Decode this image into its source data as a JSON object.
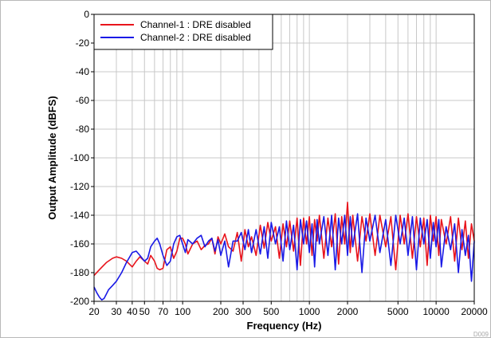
{
  "chart_data": {
    "type": "line",
    "title": "",
    "xlabel": "Frequency (Hz)",
    "ylabel": "Output Amplitude (dBFS)",
    "x_scale": "log",
    "xlim": [
      20,
      20000
    ],
    "ylim": [
      -200,
      0
    ],
    "grid": true,
    "legend_position": "top-left",
    "x_ticks": [
      20,
      30,
      40,
      50,
      70,
      100,
      200,
      300,
      500,
      1000,
      2000,
      5000,
      10000,
      20000
    ],
    "x_tick_labels": [
      "20",
      "30",
      "40",
      "50",
      "70",
      "100",
      "200",
      "300",
      "500",
      "1000",
      "2000",
      "5000",
      "10000",
      "20000"
    ],
    "y_ticks": [
      0,
      -20,
      -40,
      -60,
      -80,
      -100,
      -120,
      -140,
      -160,
      -180,
      -200
    ],
    "y_tick_labels": [
      "0",
      "-20",
      "-40",
      "-60",
      "-80",
      "-100",
      "-120",
      "-140",
      "-160",
      "-180",
      "-200"
    ],
    "series": [
      {
        "name": "Channel-1 : DRE disabled",
        "color": "#e8141c",
        "x": [
          20,
          22,
          25,
          28,
          30,
          33,
          36,
          40,
          43,
          46,
          50,
          53,
          56,
          60,
          63,
          66,
          70,
          75,
          80,
          85,
          90,
          95,
          100,
          105,
          110,
          120,
          130,
          140,
          150,
          160,
          170,
          180,
          190,
          200,
          215,
          230,
          250,
          270,
          290,
          310,
          330,
          350,
          380,
          410,
          440,
          470,
          500,
          540,
          580,
          620,
          660,
          700,
          750,
          800,
          850,
          900,
          950,
          1000,
          1050,
          1100,
          1150,
          1200,
          1300,
          1400,
          1500,
          1600,
          1700,
          1800,
          1900,
          2000,
          2100,
          2200,
          2400,
          2600,
          2800,
          3000,
          3300,
          3600,
          4000,
          4400,
          4800,
          5200,
          5600,
          6000,
          6500,
          7000,
          7500,
          8000,
          8500,
          9000,
          9500,
          10000,
          10500,
          11000,
          12000,
          13000,
          14000,
          15000,
          16000,
          17000,
          18000,
          19000,
          20000
        ],
        "y": [
          -182,
          -178,
          -173,
          -170,
          -169,
          -170,
          -172,
          -176,
          -172,
          -169,
          -172,
          -174,
          -168,
          -172,
          -177,
          -178,
          -177,
          -164,
          -162,
          -170,
          -165,
          -156,
          -156,
          -160,
          -167,
          -160,
          -158,
          -164,
          -161,
          -160,
          -156,
          -167,
          -155,
          -160,
          -153,
          -162,
          -165,
          -152,
          -172,
          -150,
          -162,
          -155,
          -168,
          -147,
          -163,
          -145,
          -158,
          -148,
          -170,
          -146,
          -162,
          -144,
          -165,
          -142,
          -175,
          -142,
          -160,
          -141,
          -168,
          -143,
          -158,
          -140,
          -170,
          -142,
          -162,
          -139,
          -174,
          -141,
          -160,
          -131,
          -166,
          -140,
          -172,
          -141,
          -158,
          -139,
          -168,
          -140,
          -162,
          -141,
          -178,
          -140,
          -160,
          -139,
          -170,
          -141,
          -162,
          -142,
          -175,
          -140,
          -158,
          -141,
          -168,
          -143,
          -160,
          -141,
          -172,
          -142,
          -164,
          -144,
          -170,
          -146,
          -158
        ]
      },
      {
        "name": "Channel-2 : DRE disabled",
        "color": "#1a1ae6",
        "x": [
          20,
          21,
          22,
          23,
          24,
          25,
          26,
          28,
          30,
          33,
          36,
          40,
          43,
          46,
          50,
          53,
          56,
          60,
          63,
          66,
          70,
          75,
          80,
          85,
          90,
          95,
          100,
          105,
          110,
          120,
          130,
          140,
          150,
          160,
          170,
          180,
          190,
          200,
          215,
          230,
          250,
          270,
          290,
          310,
          330,
          350,
          380,
          410,
          440,
          470,
          500,
          540,
          580,
          620,
          660,
          700,
          750,
          800,
          850,
          900,
          950,
          1000,
          1050,
          1100,
          1150,
          1200,
          1300,
          1400,
          1500,
          1600,
          1700,
          1800,
          1900,
          2000,
          2100,
          2200,
          2400,
          2600,
          2800,
          3000,
          3300,
          3600,
          4000,
          4400,
          4800,
          5200,
          5600,
          6000,
          6500,
          7000,
          7500,
          8000,
          8500,
          9000,
          9500,
          10000,
          10500,
          11000,
          12000,
          13000,
          14000,
          15000,
          16000,
          17000,
          18000,
          19000,
          20000
        ],
        "y": [
          -190,
          -194,
          -197,
          -199,
          -198,
          -195,
          -192,
          -189,
          -186,
          -180,
          -173,
          -166,
          -165,
          -168,
          -172,
          -170,
          -162,
          -158,
          -156,
          -160,
          -168,
          -175,
          -172,
          -160,
          -155,
          -154,
          -160,
          -166,
          -157,
          -160,
          -156,
          -154,
          -162,
          -158,
          -156,
          -165,
          -157,
          -168,
          -158,
          -176,
          -158,
          -158,
          -152,
          -164,
          -150,
          -166,
          -150,
          -167,
          -148,
          -170,
          -145,
          -160,
          -148,
          -172,
          -144,
          -164,
          -147,
          -178,
          -143,
          -160,
          -144,
          -166,
          -146,
          -176,
          -143,
          -160,
          -141,
          -168,
          -140,
          -178,
          -142,
          -160,
          -140,
          -168,
          -141,
          -162,
          -139,
          -180,
          -142,
          -158,
          -140,
          -166,
          -143,
          -175,
          -140,
          -160,
          -142,
          -168,
          -141,
          -178,
          -142,
          -160,
          -143,
          -170,
          -145,
          -162,
          -143,
          -176,
          -148,
          -164,
          -146,
          -180,
          -150,
          -168,
          -154,
          -186,
          -158
        ]
      }
    ]
  },
  "figure_id": "D009"
}
